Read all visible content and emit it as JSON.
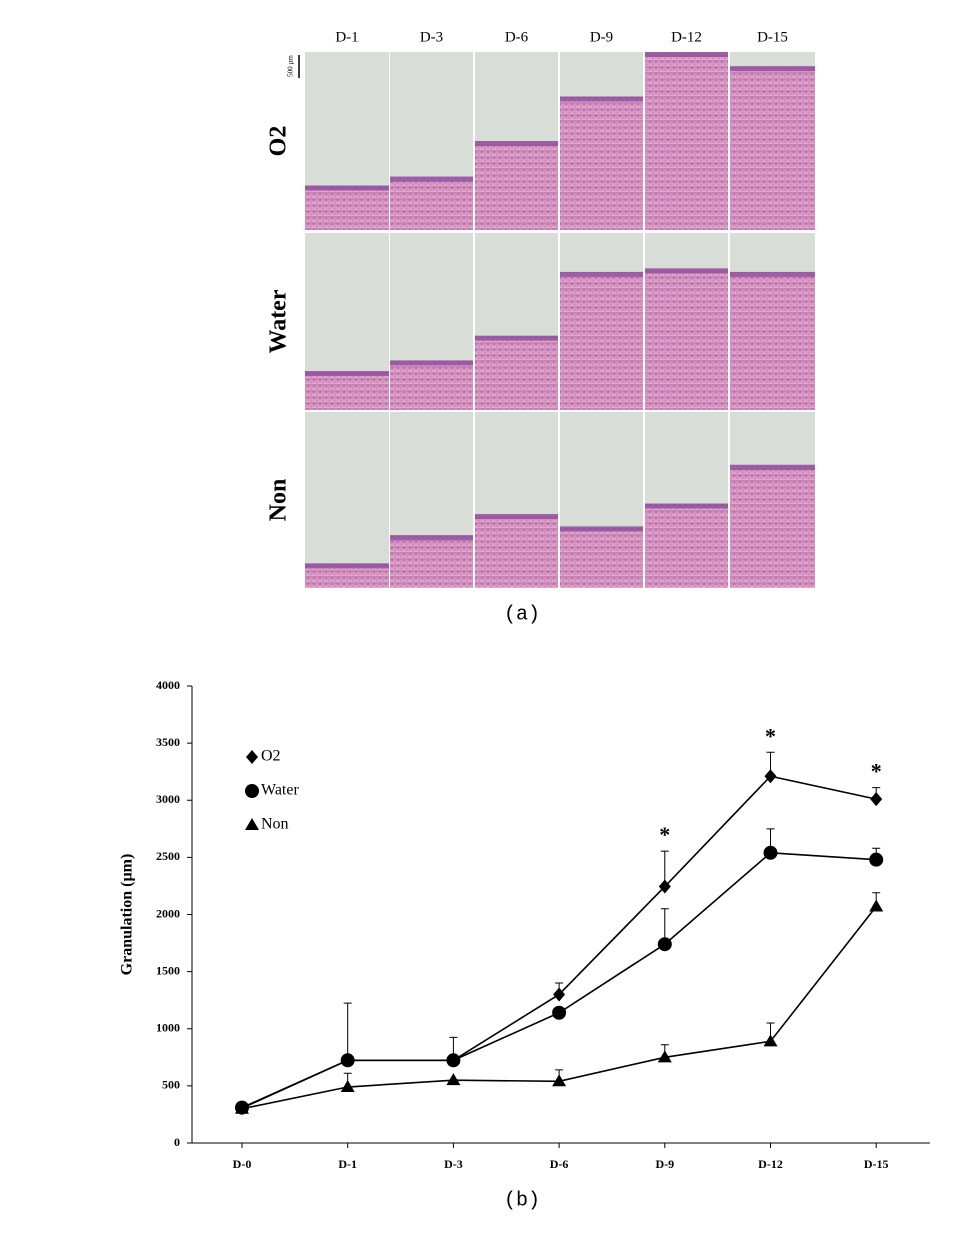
{
  "panel_a": {
    "caption": "(a)",
    "columns": [
      "D-1",
      "D-3",
      "D-6",
      "D-9",
      "D-12",
      "D-15"
    ],
    "rows": [
      "O2",
      "Water",
      "Non"
    ],
    "scale_bar": "500 µm"
  },
  "panel_b": {
    "caption": "(b)"
  },
  "chart_data": {
    "type": "line",
    "y_label": "Granulation (µm)",
    "categories": [
      "D-0",
      "D-1",
      "D-3",
      "D-6",
      "D-9",
      "D-12",
      "D-15"
    ],
    "ylim": [
      0,
      4000
    ],
    "yticks": [
      0,
      500,
      1000,
      1500,
      2000,
      2500,
      3000,
      3500,
      4000
    ],
    "legend": "upper left",
    "series": [
      {
        "name": "O2",
        "color": "#000000",
        "marker": "diamond",
        "values": [
          305,
          724,
          724,
          1300,
          2245,
          3210,
          3010
        ],
        "errors": [
          null,
          null,
          null,
          100,
          310,
          210,
          100
        ]
      },
      {
        "name": "Water",
        "color": "#000000",
        "marker": "circle",
        "values": [
          310,
          724,
          724,
          1140,
          1740,
          2540,
          2480
        ],
        "errors": [
          null,
          500,
          200,
          null,
          310,
          210,
          100
        ]
      },
      {
        "name": "Non",
        "color": "#000000",
        "marker": "triangle",
        "values": [
          300,
          490,
          550,
          540,
          750,
          890,
          2070
        ],
        "errors": [
          null,
          120,
          null,
          100,
          110,
          160,
          120
        ]
      }
    ],
    "annotations": [
      {
        "text": "*",
        "category": "D-9",
        "series": "O2"
      },
      {
        "text": "*",
        "category": "D-12",
        "series": "O2"
      },
      {
        "text": "*",
        "category": "D-15",
        "series": "O2"
      }
    ]
  }
}
